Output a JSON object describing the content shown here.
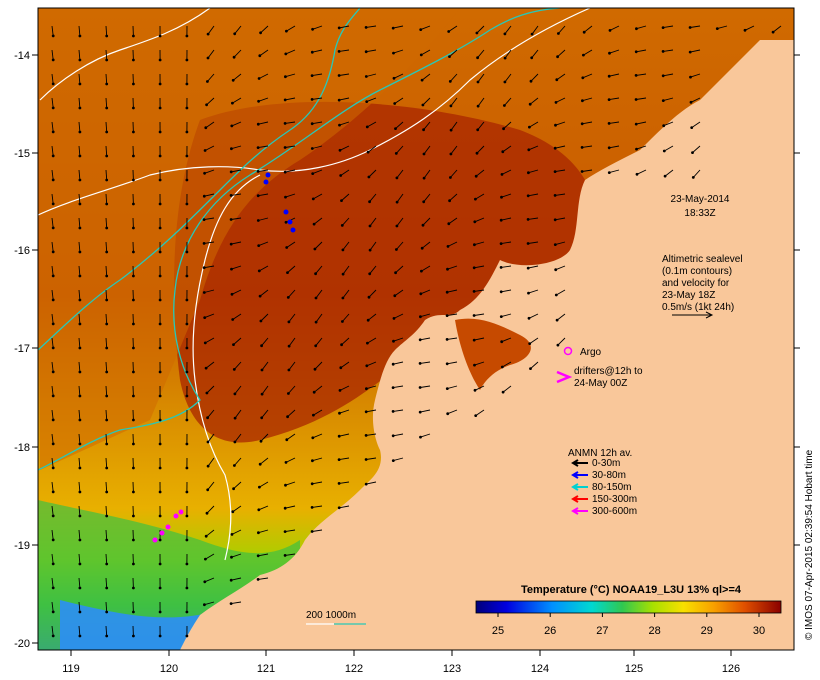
{
  "map": {
    "lon_ticks": [
      "119",
      "120",
      "121",
      "122",
      "123",
      "124",
      "125",
      "126"
    ],
    "lat_ticks": [
      "-14",
      "-15",
      "-16",
      "-17",
      "-18",
      "-19",
      "-20"
    ],
    "colors": {
      "land": "#f9c79a",
      "sst_hot": "#a92600",
      "sst_warm": "#d06800",
      "sst_mid": "#e6a800",
      "sst_cool": "#5ac83c",
      "sst_cold": "#2c8cff",
      "isobath_200": "#28c8b8",
      "isobath_1000": "#ffffff",
      "arrow": "#000000"
    }
  },
  "annotations": {
    "date": "23-May-2014",
    "time": "18:33Z",
    "altimetry_lines": [
      "Altimetric sealevel",
      "(0.1m contours)",
      "and velocity for",
      "23-May 18Z",
      "0.5m/s (1kt 24h)"
    ]
  },
  "legend": {
    "argo_label": "Argo",
    "drifters_line1": "drifters@12h to",
    "drifters_line2": "24-May 00Z",
    "anmn_title": "ANMN 12h av.",
    "anmn_items": [
      {
        "label": "0-30m",
        "color": "#000000"
      },
      {
        "label": "30-80m",
        "color": "#0000ff"
      },
      {
        "label": "80-150m",
        "color": "#00d0d0"
      },
      {
        "label": "150-300m",
        "color": "#ff0000"
      },
      {
        "label": "300-600m",
        "color": "#ff00ff"
      }
    ],
    "depth_scale": "200  1000m"
  },
  "colorbar": {
    "title": "Temperature (°C) NOAA19_L3U 13% ql>=4",
    "ticks": [
      "25",
      "26",
      "27",
      "28",
      "29",
      "30"
    ]
  },
  "credit": "© IMOS 07-Apr-2015 02:39:54 Hobart time"
}
